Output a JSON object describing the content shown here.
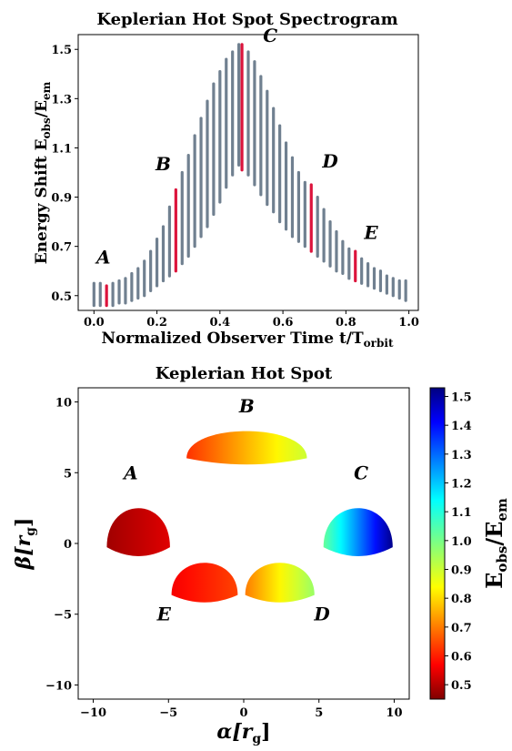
{
  "chart_data": [
    {
      "type": "bar",
      "title": "Keplerian Hot Spot Spectrogram",
      "xlabel_main": "Normalized Observer Time t/T",
      "xlabel_sub": "orbit",
      "ylabel_main": "Energy Shift E",
      "ylabel_sub1": "obs",
      "ylabel_sep": "/E",
      "ylabel_sub2": "em",
      "xlim": [
        -0.05,
        1.03
      ],
      "ylim": [
        0.44,
        1.56
      ],
      "xticks": [
        "0.0",
        "0.2",
        "0.4",
        "0.6",
        "0.8",
        "1.0"
      ],
      "yticks": [
        "0.5",
        "0.7",
        "0.9",
        "1.1",
        "1.3",
        "1.5"
      ],
      "bar_color": "#708090",
      "highlight_color": "#dc143c",
      "times": [
        0.0,
        0.02,
        0.04,
        0.06,
        0.08,
        0.1,
        0.12,
        0.14,
        0.16,
        0.18,
        0.2,
        0.22,
        0.24,
        0.26,
        0.28,
        0.3,
        0.32,
        0.34,
        0.36,
        0.38,
        0.4,
        0.42,
        0.44,
        0.46,
        0.47,
        0.49,
        0.51,
        0.53,
        0.55,
        0.57,
        0.59,
        0.61,
        0.63,
        0.65,
        0.67,
        0.69,
        0.71,
        0.73,
        0.75,
        0.77,
        0.79,
        0.81,
        0.83,
        0.85,
        0.87,
        0.89,
        0.91,
        0.93,
        0.95,
        0.97,
        0.99
      ],
      "low": [
        0.46,
        0.46,
        0.46,
        0.46,
        0.47,
        0.47,
        0.48,
        0.49,
        0.5,
        0.52,
        0.54,
        0.56,
        0.58,
        0.6,
        0.63,
        0.66,
        0.7,
        0.74,
        0.78,
        0.83,
        0.88,
        0.94,
        0.99,
        1.03,
        1.01,
        0.99,
        0.95,
        0.91,
        0.87,
        0.84,
        0.8,
        0.77,
        0.74,
        0.72,
        0.7,
        0.68,
        0.66,
        0.64,
        0.62,
        0.6,
        0.59,
        0.57,
        0.56,
        0.55,
        0.54,
        0.53,
        0.52,
        0.51,
        0.5,
        0.49,
        0.48
      ],
      "high": [
        0.55,
        0.55,
        0.54,
        0.55,
        0.56,
        0.57,
        0.59,
        0.61,
        0.64,
        0.68,
        0.73,
        0.78,
        0.86,
        0.93,
        1.0,
        1.07,
        1.15,
        1.22,
        1.29,
        1.36,
        1.41,
        1.46,
        1.49,
        1.52,
        1.52,
        1.49,
        1.45,
        1.39,
        1.33,
        1.26,
        1.19,
        1.12,
        1.06,
        1.0,
        0.96,
        0.95,
        0.9,
        0.85,
        0.8,
        0.76,
        0.72,
        0.69,
        0.68,
        0.65,
        0.63,
        0.61,
        0.6,
        0.58,
        0.57,
        0.56,
        0.56
      ],
      "highlights": [
        2,
        13,
        24,
        35,
        42
      ],
      "annotations": [
        {
          "label": "A",
          "x": 0.03,
          "y": 0.63
        },
        {
          "label": "B",
          "x": 0.22,
          "y": 1.01
        },
        {
          "label": "C",
          "x": 0.56,
          "y": 1.53
        },
        {
          "label": "D",
          "x": 0.75,
          "y": 1.02
        },
        {
          "label": "E",
          "x": 0.88,
          "y": 0.73
        }
      ]
    },
    {
      "type": "scatter",
      "title": "Keplerian Hot Spot",
      "xlabel_main": "α[r",
      "xlabel_sub": "g",
      "xlabel_end": "]",
      "ylabel_main": "β[r",
      "ylabel_sub": "g",
      "ylabel_end": "]",
      "xlim": [
        -11,
        11
      ],
      "ylim": [
        -11,
        11
      ],
      "xticks": [
        {
          "v": -10,
          "label": "−10"
        },
        {
          "v": -5,
          "label": "−5"
        },
        {
          "v": 0,
          "label": "0"
        },
        {
          "v": 5,
          "label": "5"
        },
        {
          "v": 10,
          "label": "10"
        }
      ],
      "yticks": [
        {
          "v": -10,
          "label": "−10"
        },
        {
          "v": -5,
          "label": "−5"
        },
        {
          "v": 0,
          "label": "0"
        },
        {
          "v": 5,
          "label": "5"
        },
        {
          "v": 10,
          "label": "10"
        }
      ],
      "spots": [
        {
          "label": "A",
          "cx": -7.0,
          "cy": 1.0,
          "rx": 2.1,
          "ry": 2.3,
          "e_left": 0.48,
          "e_right": 0.54,
          "label_x": -7.5,
          "label_y": 5.0
        },
        {
          "label": "B",
          "cx": 0.2,
          "cy": 6.9,
          "rx": 4.0,
          "ry": 1.6,
          "e_left": 0.62,
          "e_right": 0.9,
          "label_x": 0.2,
          "label_y": 9.7
        },
        {
          "label": "C",
          "cx": 7.6,
          "cy": 1.0,
          "rx": 2.3,
          "ry": 2.3,
          "e_left": 1.02,
          "e_right": 1.52,
          "label_x": 7.8,
          "label_y": 5.0
        },
        {
          "label": "D",
          "cx": 2.4,
          "cy": -2.6,
          "rx": 2.3,
          "ry": 1.9,
          "e_left": 0.7,
          "e_right": 0.96,
          "label_x": 5.2,
          "label_y": -5.0
        },
        {
          "label": "E",
          "cx": -2.6,
          "cy": -2.6,
          "rx": 2.2,
          "ry": 1.9,
          "e_left": 0.56,
          "e_right": 0.64,
          "label_x": -5.3,
          "label_y": -5.0
        }
      ],
      "colorbar": {
        "label_main": "E",
        "label_sub1": "obs",
        "label_sep": "/E",
        "label_sub2": "em",
        "min": 0.45,
        "max": 1.53,
        "ticks": [
          "0.5",
          "0.6",
          "0.7",
          "0.8",
          "0.9",
          "1.0",
          "1.1",
          "1.2",
          "1.3",
          "1.4",
          "1.5"
        ],
        "colormap": "jet"
      }
    }
  ]
}
